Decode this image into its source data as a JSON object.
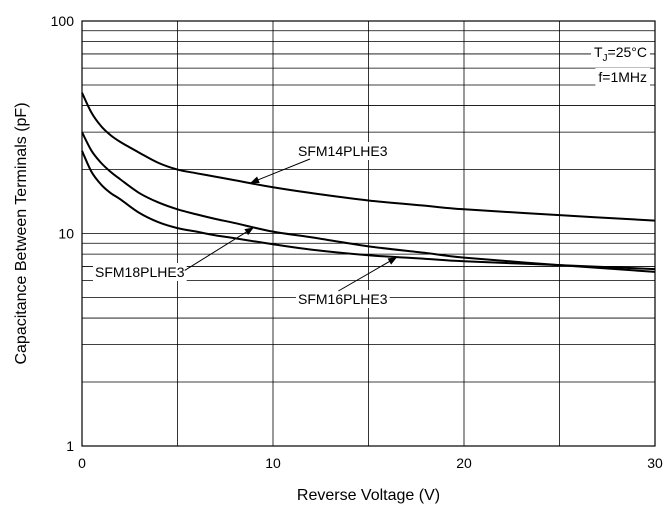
{
  "chart_data": {
    "type": "line",
    "title": "",
    "xlabel": "Reverse Voltage (V)",
    "ylabel": "Capacitance Between Terminals (pF)",
    "xlim": [
      0,
      30
    ],
    "ylim": [
      1,
      100
    ],
    "yscale": "log",
    "grid": true,
    "x_ticks": [
      "0",
      "10",
      "20",
      "30"
    ],
    "y_ticks": [
      "1",
      "10",
      "100"
    ],
    "conditions": {
      "tj_prefix": "T",
      "tj_sub": "J",
      "tj_value": "=25°C",
      "freq": "f=1MHz"
    },
    "series": [
      {
        "name": "SFM14PLHE3",
        "x": [
          0,
          0.5,
          1,
          1.5,
          2,
          3,
          4,
          5,
          6,
          7,
          8,
          10,
          12,
          15,
          18,
          20,
          25,
          30
        ],
        "y": [
          46,
          37,
          32,
          29,
          27,
          24,
          21.5,
          20,
          19.2,
          18.5,
          17.8,
          16.5,
          15.5,
          14.3,
          13.5,
          13,
          12.2,
          11.5
        ]
      },
      {
        "name": "SFM18PLHE3",
        "x": [
          0,
          0.5,
          1,
          1.5,
          2,
          3,
          4,
          5,
          6,
          7,
          8,
          10,
          12,
          15,
          18,
          20,
          25,
          30
        ],
        "y": [
          30,
          24.5,
          21.5,
          19.5,
          18,
          15.5,
          14,
          13,
          12.3,
          11.7,
          11.2,
          10.2,
          9.6,
          8.7,
          8.1,
          7.7,
          7.1,
          6.6
        ]
      },
      {
        "name": "SFM16PLHE3",
        "x": [
          0,
          0.5,
          1,
          1.5,
          2,
          3,
          4,
          5,
          6,
          7,
          8,
          10,
          12,
          15,
          18,
          20,
          25,
          30
        ],
        "y": [
          24.5,
          19.5,
          17,
          15.5,
          14.5,
          12.5,
          11.3,
          10.6,
          10.2,
          9.8,
          9.5,
          8.9,
          8.4,
          7.9,
          7.6,
          7.4,
          7.1,
          6.8
        ]
      }
    ],
    "annotations": [
      {
        "series": "SFM14PLHE3",
        "text": "SFM14PLHE3"
      },
      {
        "series": "SFM18PLHE3",
        "text": "SFM18PLHE3"
      },
      {
        "series": "SFM16PLHE3",
        "text": "SFM16PLHE3"
      }
    ]
  }
}
